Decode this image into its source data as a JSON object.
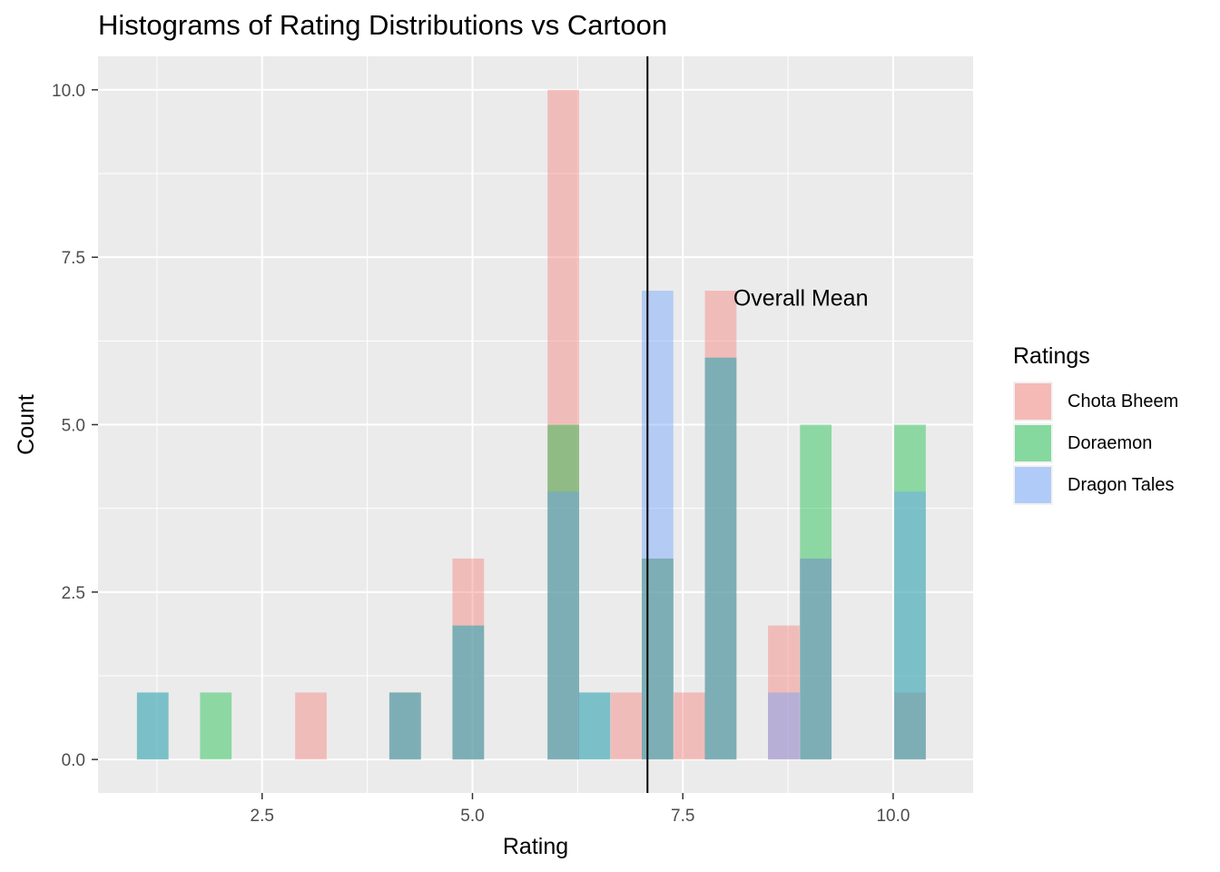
{
  "title": "Histograms of Rating Distributions vs Cartoon",
  "chart_data": {
    "type": "histogram",
    "title": "Histograms of Rating Distributions vs Cartoon",
    "xlabel": "Rating",
    "ylabel": "Count",
    "xlim": [
      0.55,
      10.95
    ],
    "ylim": [
      -0.5,
      10.5
    ],
    "x_ticks": [
      2.5,
      5.0,
      7.5,
      10.0
    ],
    "x_tick_labels": [
      "2.5",
      "5.0",
      "7.5",
      "10.0"
    ],
    "y_ticks": [
      0,
      2.5,
      5.0,
      7.5,
      10.0
    ],
    "y_tick_labels": [
      "0.0",
      "2.5",
      "5.0",
      "7.5",
      "10.0"
    ],
    "grid": true,
    "bin_width": 0.375,
    "bin_centers": [
      1.2,
      1.95,
      3.08,
      4.2,
      4.95,
      6.08,
      6.45,
      6.83,
      7.2,
      7.58,
      7.95,
      8.7,
      9.08,
      10.2
    ],
    "legend_title": "Ratings",
    "legend_position": "right",
    "series": [
      {
        "name": "Chota Bheem",
        "color": "#F8766D",
        "values": [
          0,
          0,
          1,
          1,
          3,
          10,
          0,
          1,
          3,
          1,
          7,
          2,
          3,
          1
        ]
      },
      {
        "name": "Doraemon",
        "color": "#00BA38",
        "values": [
          1,
          1,
          0,
          1,
          2,
          5,
          1,
          0,
          3,
          0,
          6,
          0,
          5,
          5
        ]
      },
      {
        "name": "Dragon Tales",
        "color": "#619CFF",
        "values": [
          1,
          0,
          0,
          1,
          2,
          4,
          1,
          0,
          7,
          0,
          6,
          1,
          3,
          4
        ]
      }
    ],
    "mean_line": {
      "x": 7.08,
      "label": "Overall Mean",
      "label_x": 8.1,
      "label_y": 6.9
    }
  }
}
